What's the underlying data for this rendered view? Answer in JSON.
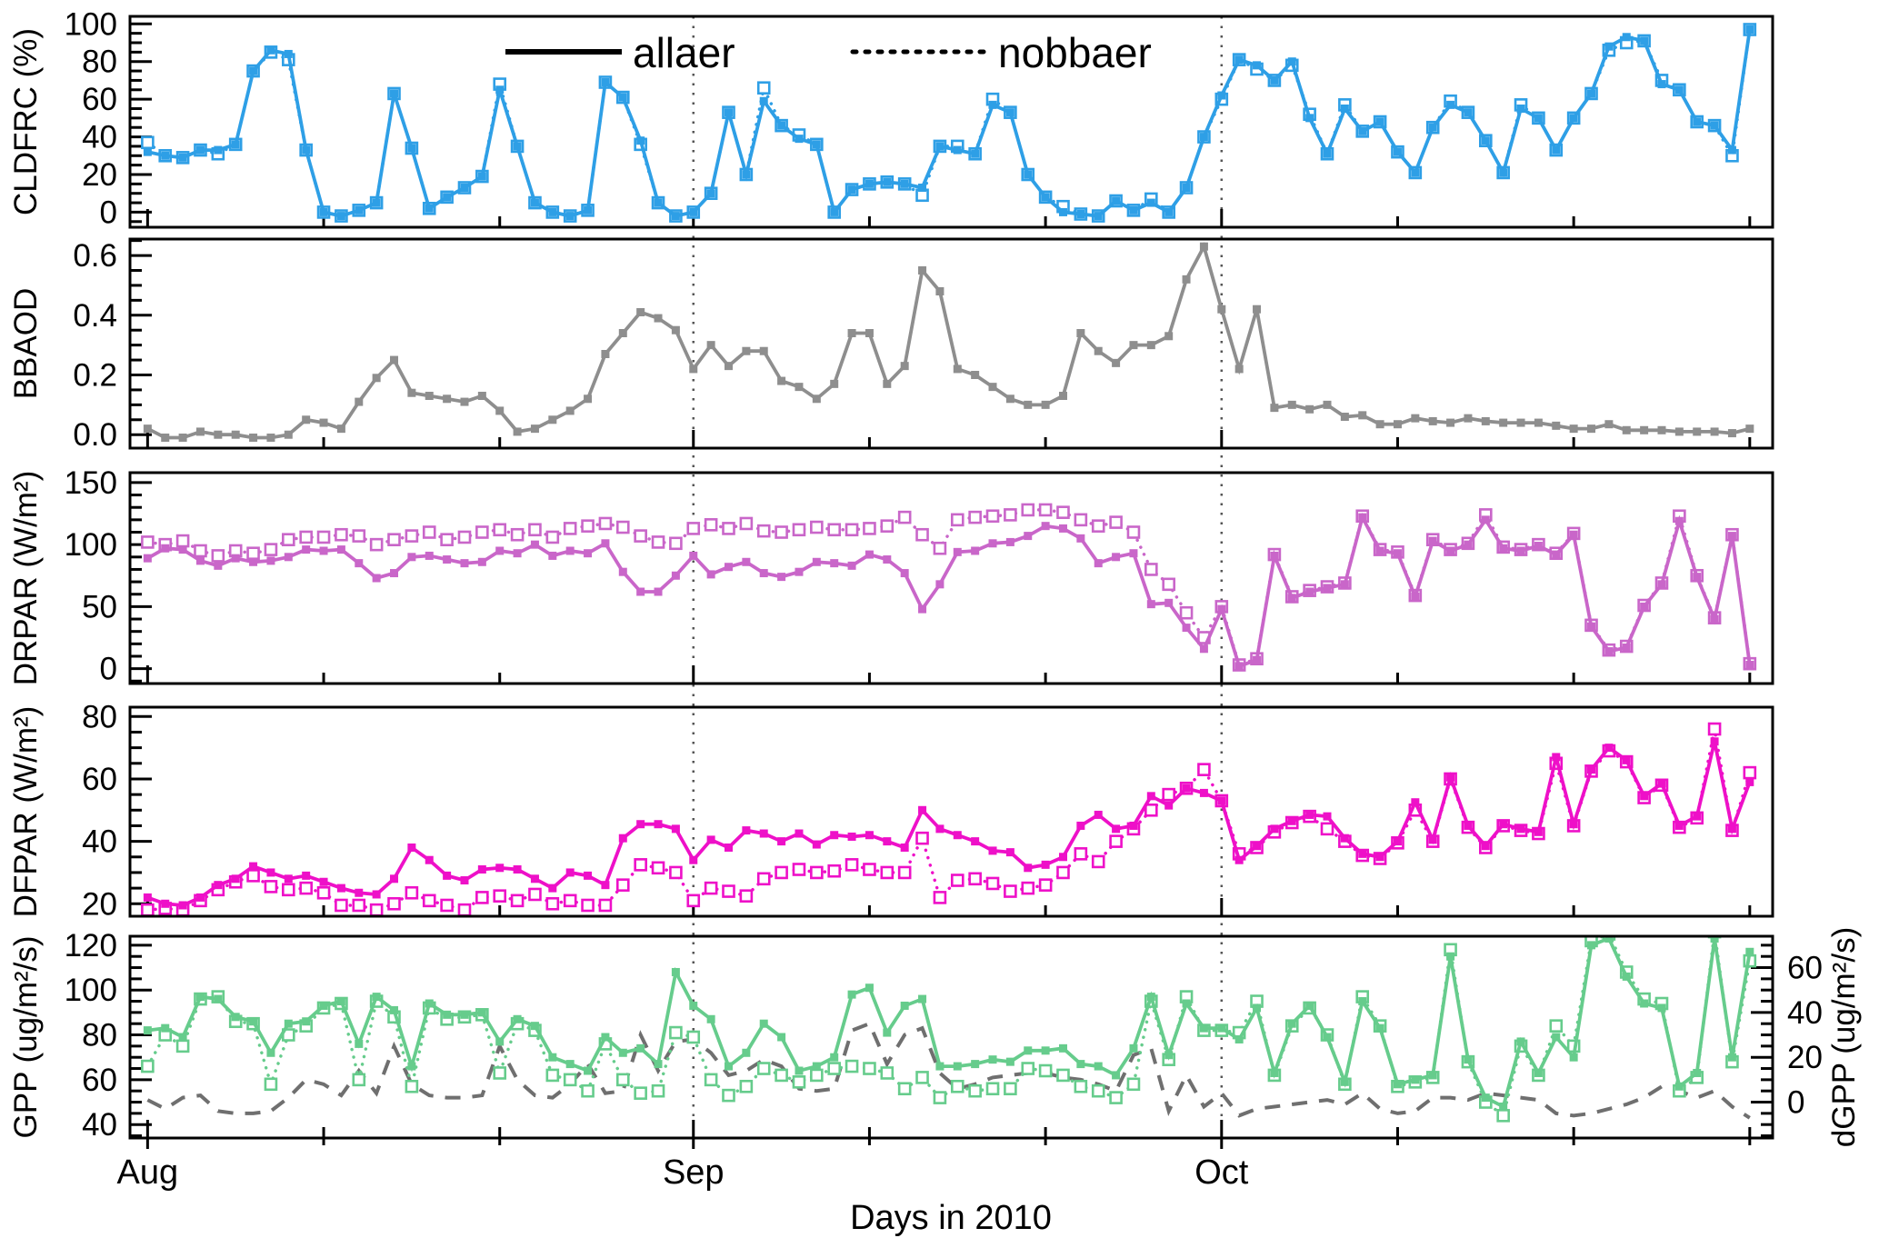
{
  "figure": {
    "xlabel": "Days in 2010",
    "month_labels": [
      "Aug",
      "Sep",
      "Oct"
    ],
    "legend": {
      "allaer": "allaer",
      "nobbaer": "nobbaer"
    },
    "right_ylabel": "dGPP (ug/m²/s)"
  },
  "colors": {
    "cldfrc": "#2E9FE6",
    "bbaod": "#8E8E8E",
    "drpar": "#C966C9",
    "dfpar": "#EE10C8",
    "gpp": "#66CC8C",
    "dgpp": "#6F6F6F",
    "axis": "#000000",
    "monthline": "#555555"
  },
  "x_axis": {
    "unit": "days",
    "start_month_day": 0,
    "n_days": 92,
    "month_tick_days": [
      0,
      31,
      61
    ],
    "minor_tick_days": [
      10,
      20,
      41,
      51,
      71,
      81,
      91
    ]
  },
  "chart_data": [
    {
      "type": "line",
      "name": "cldfrc",
      "ylabel": "CLDFRC (%)",
      "ylim": [
        -8,
        104
      ],
      "yticks": [
        0,
        20,
        40,
        60,
        80,
        100
      ],
      "ytick_labels": [
        "0",
        "20",
        "40",
        "60",
        "80",
        "100"
      ],
      "yminor": 5,
      "ymajor_step": 20,
      "series": [
        {
          "name": "nobbaer",
          "style": "dotted-open",
          "values": [
            37,
            30,
            29,
            33,
            31,
            36,
            75,
            85,
            81,
            33,
            0,
            -2,
            1,
            5,
            63,
            34,
            2,
            8,
            13,
            19,
            68,
            35,
            5,
            0,
            -2,
            1,
            69,
            61,
            36,
            5,
            -2,
            0,
            10,
            53,
            20,
            66,
            46,
            41,
            36,
            0,
            12,
            15,
            16,
            15,
            9,
            35,
            35,
            31,
            60,
            53,
            20,
            8,
            3,
            -1,
            -2,
            6,
            1,
            7,
            0,
            13,
            40,
            60,
            81,
            76,
            70,
            78,
            52,
            31,
            57,
            43,
            48,
            32,
            21,
            45,
            59,
            53,
            38,
            21,
            57,
            50,
            33,
            50,
            63,
            86,
            90,
            91,
            70,
            65,
            48,
            46,
            30,
            97
          ]
        },
        {
          "name": "allaer",
          "style": "solid-filled",
          "values": [
            32,
            30,
            29,
            33,
            33,
            36,
            75,
            86,
            84,
            33,
            0,
            -2,
            1,
            5,
            63,
            34,
            2,
            8,
            13,
            19,
            65,
            35,
            5,
            0,
            -2,
            1,
            69,
            61,
            38,
            5,
            -2,
            0,
            10,
            53,
            20,
            59,
            46,
            39,
            36,
            0,
            12,
            15,
            16,
            15,
            13,
            35,
            33,
            31,
            57,
            53,
            20,
            8,
            0,
            -1,
            -2,
            6,
            1,
            5,
            0,
            13,
            40,
            62,
            81,
            78,
            70,
            80,
            50,
            31,
            55,
            43,
            48,
            32,
            21,
            45,
            57,
            53,
            38,
            21,
            55,
            50,
            33,
            50,
            63,
            88,
            93,
            91,
            68,
            65,
            48,
            46,
            33,
            97
          ]
        }
      ]
    },
    {
      "type": "line",
      "name": "bbaod",
      "ylabel": "BBAOD",
      "ylim": [
        -0.045,
        0.655
      ],
      "yticks": [
        0.0,
        0.2,
        0.4,
        0.6
      ],
      "ytick_labels": [
        "0.0",
        "0.2",
        "0.4",
        "0.6"
      ],
      "yminor": 0.05,
      "ymajor_step": 0.2,
      "series": [
        {
          "name": "allaer",
          "style": "solid-filled",
          "values": [
            0.02,
            -0.01,
            -0.01,
            0.01,
            0,
            0,
            -0.01,
            -0.01,
            0,
            0.05,
            0.04,
            0.02,
            0.11,
            0.19,
            0.25,
            0.14,
            0.13,
            0.12,
            0.11,
            0.13,
            0.08,
            0.01,
            0.02,
            0.05,
            0.08,
            0.12,
            0.27,
            0.34,
            0.41,
            0.39,
            0.35,
            0.22,
            0.3,
            0.23,
            0.28,
            0.28,
            0.18,
            0.16,
            0.12,
            0.17,
            0.34,
            0.34,
            0.17,
            0.23,
            0.55,
            0.48,
            0.22,
            0.2,
            0.16,
            0.12,
            0.1,
            0.1,
            0.13,
            0.34,
            0.28,
            0.24,
            0.3,
            0.3,
            0.33,
            0.52,
            0.63,
            0.42,
            0.22,
            0.42,
            0.09,
            0.1,
            0.085,
            0.1,
            0.06,
            0.065,
            0.035,
            0.035,
            0.055,
            0.045,
            0.04,
            0.055,
            0.045,
            0.04,
            0.04,
            0.04,
            0.03,
            0.02,
            0.02,
            0.035,
            0.015,
            0.015,
            0.015,
            0.01,
            0.01,
            0.01,
            0.005,
            0.02
          ]
        }
      ]
    },
    {
      "type": "line",
      "name": "drpar",
      "ylabel": "DRPAR (W/m²)",
      "ylim": [
        -12,
        158
      ],
      "yticks": [
        0,
        50,
        100,
        150
      ],
      "ytick_labels": [
        "0",
        "50",
        "100",
        "150"
      ],
      "yminor": 10,
      "ymajor_step": 50,
      "series": [
        {
          "name": "nobbaer",
          "style": "dotted-open",
          "values": [
            102,
            100,
            103,
            95,
            91,
            95,
            93,
            96,
            104,
            106,
            106,
            108,
            107,
            100,
            104,
            107,
            110,
            104,
            106,
            110,
            112,
            108,
            112,
            106,
            113,
            115,
            117,
            114,
            107,
            102,
            101,
            113,
            116,
            113,
            117,
            111,
            110,
            112,
            114,
            112,
            112,
            113,
            115,
            122,
            108,
            97,
            120,
            122,
            123,
            124,
            128,
            128,
            126,
            120,
            115,
            118,
            110,
            80,
            68,
            45,
            25,
            50,
            3,
            8,
            92,
            58,
            63,
            66,
            69,
            123,
            96,
            94,
            59,
            104,
            96,
            101,
            124,
            98,
            96,
            100,
            93,
            109,
            35,
            15,
            18,
            51,
            69,
            123,
            75,
            41,
            108,
            4
          ]
        },
        {
          "name": "allaer",
          "style": "solid-filled",
          "values": [
            89,
            97,
            96,
            87,
            83,
            89,
            86,
            87,
            90,
            96,
            95,
            96,
            85,
            73,
            77,
            90,
            91,
            88,
            85,
            86,
            95,
            93,
            100,
            91,
            95,
            93,
            101,
            78,
            62,
            62,
            75,
            91,
            76,
            82,
            86,
            77,
            74,
            78,
            86,
            85,
            83,
            92,
            88,
            77,
            48,
            68,
            94,
            95,
            101,
            102,
            107,
            115,
            113,
            105,
            85,
            90,
            93,
            52,
            53,
            33,
            16,
            48,
            2,
            7,
            91,
            57,
            62,
            65,
            68,
            122,
            95,
            93,
            58,
            103,
            95,
            100,
            120,
            97,
            95,
            99,
            92,
            108,
            34,
            14,
            17,
            50,
            68,
            119,
            74,
            40,
            107,
            3
          ]
        }
      ]
    },
    {
      "type": "line",
      "name": "dfpar",
      "ylabel": "DFPAR (W/m²)",
      "ylim": [
        16,
        83
      ],
      "yticks": [
        20,
        40,
        60,
        80
      ],
      "ytick_labels": [
        "20",
        "40",
        "60",
        "80"
      ],
      "yminor": 5,
      "ymajor_step": 20,
      "series": [
        {
          "name": "nobbaer",
          "style": "dotted-open",
          "values": [
            18,
            18.5,
            18,
            21,
            24.5,
            27,
            29,
            25.5,
            24.5,
            25,
            23.5,
            19.5,
            19.5,
            18,
            20,
            23.5,
            21,
            19.5,
            18,
            22,
            22.5,
            21,
            23,
            20,
            21,
            19.5,
            19.5,
            26,
            32.5,
            31.5,
            30,
            21,
            25,
            24,
            22.5,
            28,
            30,
            31,
            30,
            30.5,
            32.5,
            31,
            30,
            30,
            41,
            22,
            27.5,
            28,
            26.5,
            24,
            25,
            26,
            30,
            36,
            33.5,
            40,
            44,
            50,
            55,
            57,
            63,
            53,
            36,
            38,
            43,
            46,
            48,
            44,
            40,
            35.5,
            34.5,
            39.5,
            50,
            40,
            60,
            44.5,
            38,
            45,
            43.5,
            42.5,
            65,
            45,
            62.5,
            69,
            65.5,
            54,
            58,
            44.5,
            47.5,
            76,
            43.5,
            62
          ]
        },
        {
          "name": "allaer",
          "style": "solid-filled",
          "values": [
            22,
            20,
            19.5,
            22,
            26,
            28,
            32,
            30,
            28,
            29,
            27,
            25,
            23.5,
            23,
            28,
            38,
            34,
            29,
            27.5,
            31,
            31.5,
            31,
            28,
            25,
            30,
            29,
            26,
            41,
            45.5,
            45.5,
            44,
            34,
            40.5,
            38,
            43.5,
            42.5,
            40,
            42.5,
            39,
            42,
            41.5,
            42,
            40,
            38,
            50,
            44,
            42,
            40,
            37,
            36.5,
            31.5,
            32.5,
            35,
            45,
            48.5,
            44,
            45,
            54.5,
            51.5,
            57,
            55.5,
            53,
            34,
            38.5,
            44,
            46.5,
            48.5,
            48,
            41,
            36,
            35,
            40,
            52.5,
            40.5,
            60.5,
            45,
            38.5,
            45.5,
            44,
            43,
            67,
            45.5,
            63,
            70,
            66,
            54.5,
            58.5,
            45,
            48,
            72,
            44,
            59
          ]
        }
      ]
    },
    {
      "type": "line",
      "name": "gpp",
      "ylabel": "GPP (ug/m²/s)",
      "ylim": [
        34,
        124
      ],
      "yticks": [
        40,
        60,
        80,
        100,
        120
      ],
      "ytick_labels": [
        "40",
        "60",
        "80",
        "100",
        "120"
      ],
      "yminor": 5,
      "ymajor_step": 20,
      "right_axis": {
        "label": "dGPP (ug/m²/s)",
        "ticks": [
          0,
          20,
          40,
          60
        ],
        "tick_labels": [
          "0",
          "20",
          "40",
          "60"
        ],
        "minor": 5,
        "major_step": 20,
        "offset_vs_left": 50
      },
      "series": [
        {
          "name": "dGPP",
          "style": "dashed",
          "axis": "right",
          "values": [
            1,
            -3,
            2,
            3,
            -4,
            -5,
            -5,
            -4,
            2,
            10,
            8,
            3,
            14,
            4,
            25,
            8,
            3,
            2,
            2,
            3,
            25,
            10,
            3,
            2,
            8,
            17,
            4,
            5,
            30,
            14,
            27,
            28,
            22,
            12,
            14,
            19,
            16,
            6,
            5,
            6,
            32,
            35,
            17,
            30,
            33,
            13,
            6,
            8,
            11,
            12,
            13,
            13,
            11,
            10,
            8,
            5,
            21,
            24,
            -4,
            12,
            -2,
            4,
            -6,
            -3,
            -2,
            -1,
            0,
            1,
            -1,
            4,
            -3,
            -5,
            -4,
            2,
            2,
            1,
            4,
            3,
            2,
            1,
            -5,
            -6,
            -5,
            -3,
            -1,
            2,
            7,
            5,
            2,
            5,
            -2,
            -7
          ]
        },
        {
          "name": "nobbaer",
          "style": "dotted-open",
          "values": [
            66,
            80,
            75,
            96,
            97,
            86,
            85,
            58,
            80,
            84,
            92,
            94,
            60,
            95,
            88,
            57,
            92,
            87,
            88,
            89,
            63,
            85,
            82,
            62,
            60,
            55,
            76,
            60,
            54,
            55,
            81,
            79,
            60,
            53,
            57,
            65,
            62,
            59,
            62,
            65,
            66,
            65,
            63,
            56,
            61,
            52,
            57,
            55,
            56,
            56,
            65,
            64,
            62,
            57,
            55,
            52,
            58,
            95,
            69,
            97,
            82,
            82,
            81,
            95,
            62,
            84,
            92,
            80,
            58,
            97,
            84,
            57,
            59,
            61,
            118,
            68,
            50,
            44,
            75,
            62,
            84,
            75,
            122,
            125,
            108,
            96,
            94,
            55,
            61,
            126,
            68,
            113
          ]
        },
        {
          "name": "allaer",
          "style": "solid-filled",
          "values": [
            82,
            83,
            79,
            97,
            96,
            88,
            86,
            72,
            85,
            86,
            93,
            95,
            76,
            97,
            91,
            66,
            94,
            89,
            89,
            90,
            77,
            87,
            84,
            70,
            67,
            64,
            79,
            72,
            74,
            67,
            108,
            93,
            87,
            66,
            72,
            85,
            79,
            64,
            66,
            70,
            98,
            101,
            81,
            93,
            96,
            66,
            66,
            67,
            69,
            68,
            73,
            73,
            74,
            67,
            66,
            62,
            74,
            97,
            71,
            94,
            83,
            83,
            78,
            92,
            63,
            85,
            93,
            79,
            59,
            95,
            83,
            58,
            60,
            62,
            115,
            69,
            52,
            48,
            77,
            63,
            79,
            70,
            120,
            123,
            106,
            94,
            92,
            57,
            63,
            123,
            70,
            117
          ]
        }
      ]
    }
  ]
}
